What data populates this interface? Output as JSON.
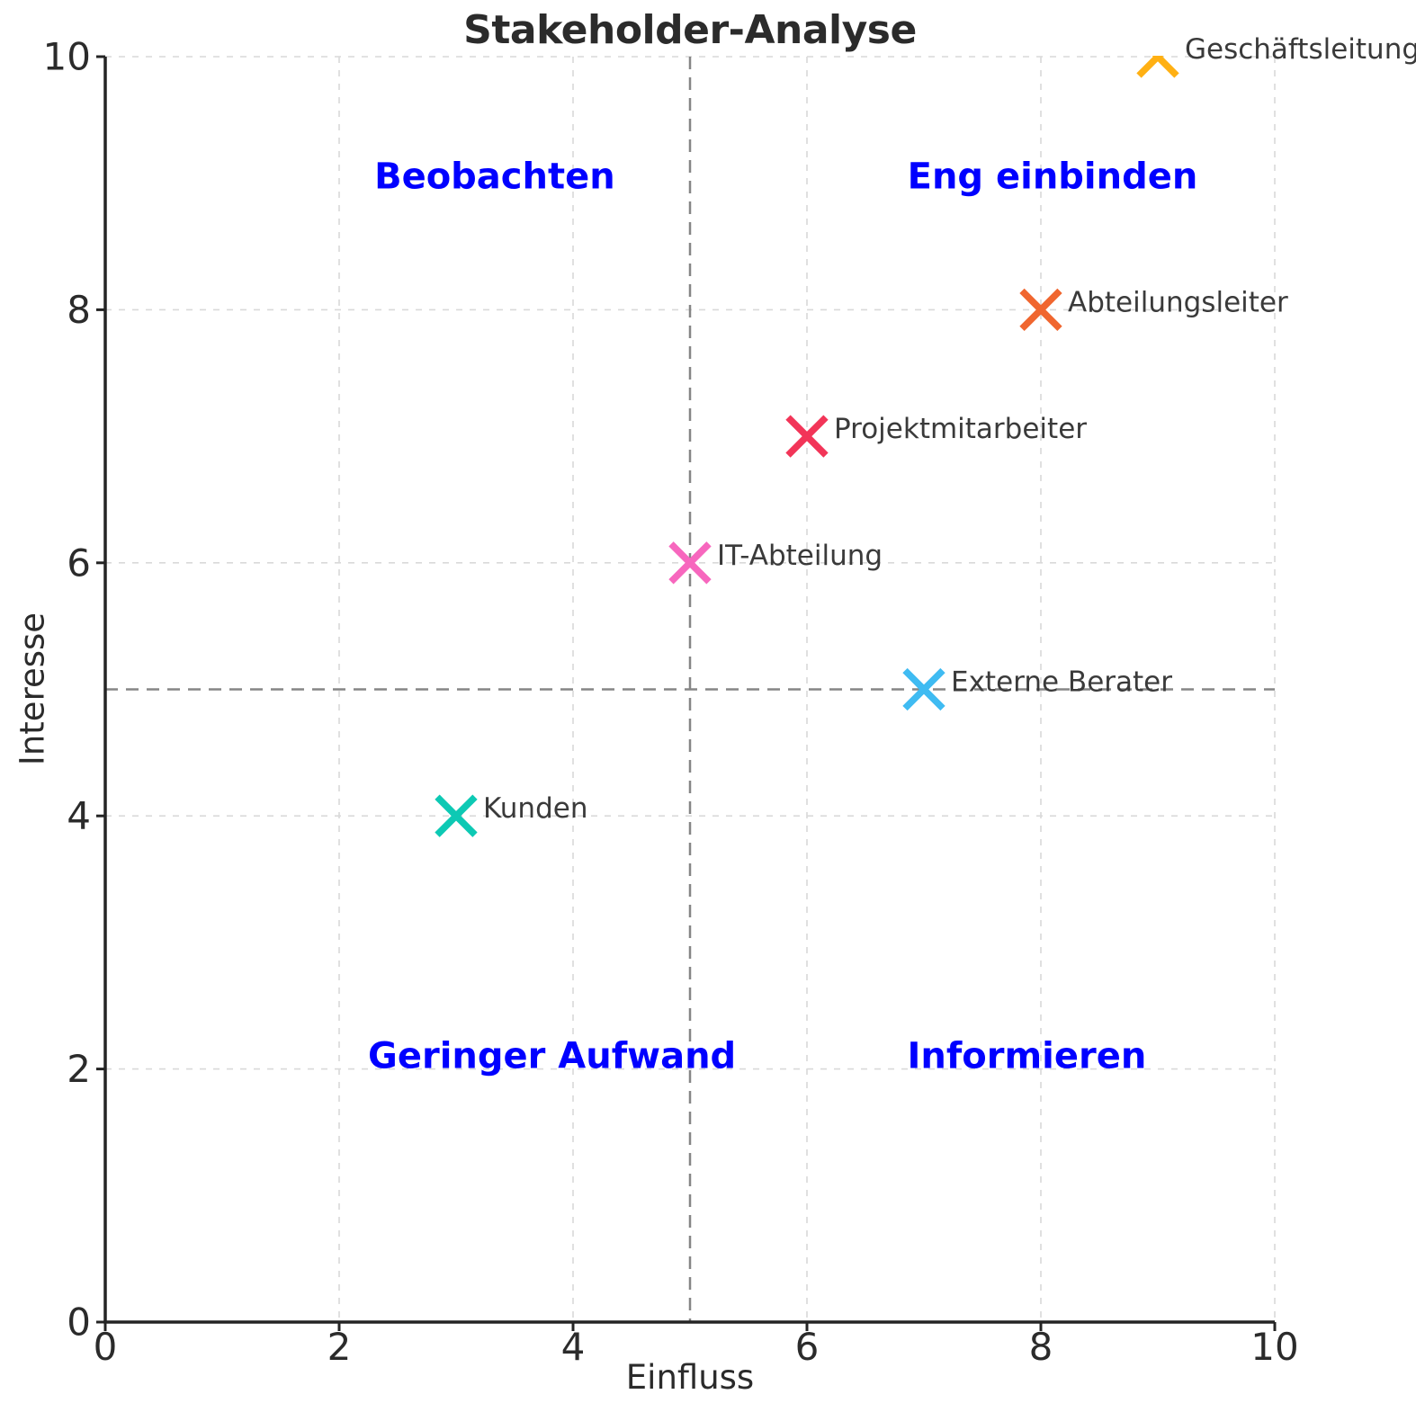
{
  "chart_data": {
    "type": "scatter",
    "title": "Stakeholder-Analyse",
    "xlabel": "Einfluss",
    "ylabel": "Interesse",
    "xlim": [
      0,
      10
    ],
    "ylim": [
      0,
      10
    ],
    "xticks": [
      0,
      2,
      4,
      6,
      8,
      10
    ],
    "yticks": [
      0,
      2,
      4,
      6,
      8,
      10
    ],
    "grid": true,
    "legend": "none",
    "marker": "x",
    "points": [
      {
        "label": "Geschäftsleitung",
        "x": 9,
        "y": 10,
        "color": "#FFB013"
      },
      {
        "label": "Abteilungsleiter",
        "x": 8,
        "y": 8,
        "color": "#F0662F"
      },
      {
        "label": "Projektmitarbeiter",
        "x": 6,
        "y": 7,
        "color": "#F23558"
      },
      {
        "label": "IT-Abteilung",
        "x": 5,
        "y": 6,
        "color": "#F767BE"
      },
      {
        "label": "Externe Berater",
        "x": 7,
        "y": 5,
        "color": "#3FBBF2"
      },
      {
        "label": "Kunden",
        "x": 3,
        "y": 4,
        "color": "#0DC9B4"
      }
    ],
    "quadrant_labels": [
      {
        "text": "Beobachten",
        "x": 3.33,
        "y": 9.05
      },
      {
        "text": "Eng einbinden",
        "x": 8.1,
        "y": 9.05
      },
      {
        "text": "Geringer Aufwand",
        "x": 3.82,
        "y": 2.1
      },
      {
        "text": "Informieren",
        "x": 7.88,
        "y": 2.1
      }
    ],
    "quadrant_label_color": "#0000FF",
    "dividers": {
      "x": 5,
      "y": 5,
      "color": "#858585"
    },
    "grid_color": "#D9D9D9",
    "spine_color": "#242424",
    "tick_label_color": "#2B2B2B",
    "point_label_color": "#3A3A3A"
  }
}
